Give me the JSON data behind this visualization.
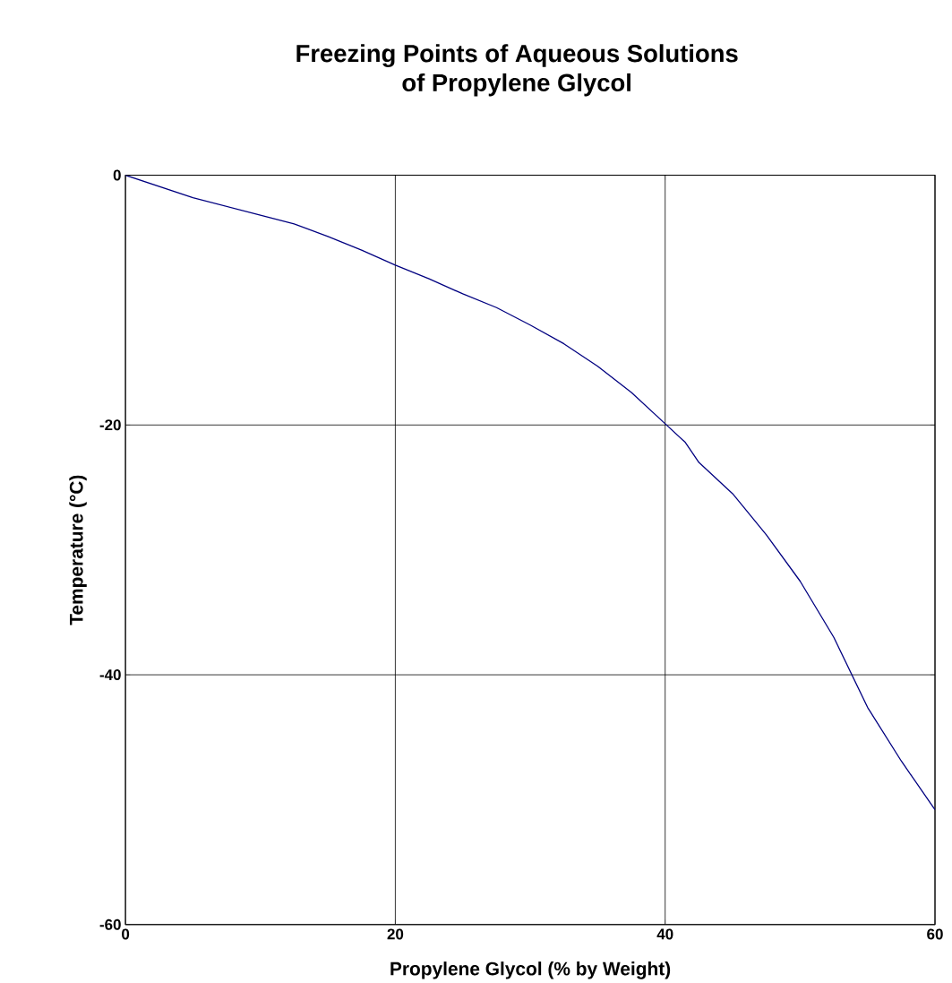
{
  "chart_data": {
    "type": "line",
    "title": "Freezing Points of Aqueous Solutions\nof Propylene Glycol",
    "xlabel": "Propylene Glycol (% by Weight)",
    "ylabel": "Temperature (°C)",
    "x": [
      0,
      5,
      10,
      12.5,
      15,
      17.5,
      20,
      22.5,
      25,
      27.5,
      30,
      32.5,
      35,
      37.5,
      40,
      41.5,
      42.5,
      45,
      47.5,
      50,
      52.5,
      55,
      57.5,
      60
    ],
    "series": [
      {
        "color": "#000080",
        "values": [
          0,
          -1.8,
          -3.2,
          -3.9,
          -4.9,
          -6.0,
          -7.2,
          -8.3,
          -9.5,
          -10.6,
          -12.0,
          -13.5,
          -15.3,
          -17.4,
          -19.9,
          -21.4,
          -23.0,
          -25.5,
          -28.8,
          -32.5,
          -37.0,
          -42.6,
          -46.9,
          -50.8
        ]
      }
    ],
    "xlim": [
      0,
      60
    ],
    "ylim": [
      -60,
      0
    ],
    "xticks": [
      0,
      20,
      40,
      60
    ],
    "yticks": [
      -60,
      -40,
      -20,
      0
    ],
    "grid": true,
    "marker": "none",
    "line_style": "solid"
  }
}
